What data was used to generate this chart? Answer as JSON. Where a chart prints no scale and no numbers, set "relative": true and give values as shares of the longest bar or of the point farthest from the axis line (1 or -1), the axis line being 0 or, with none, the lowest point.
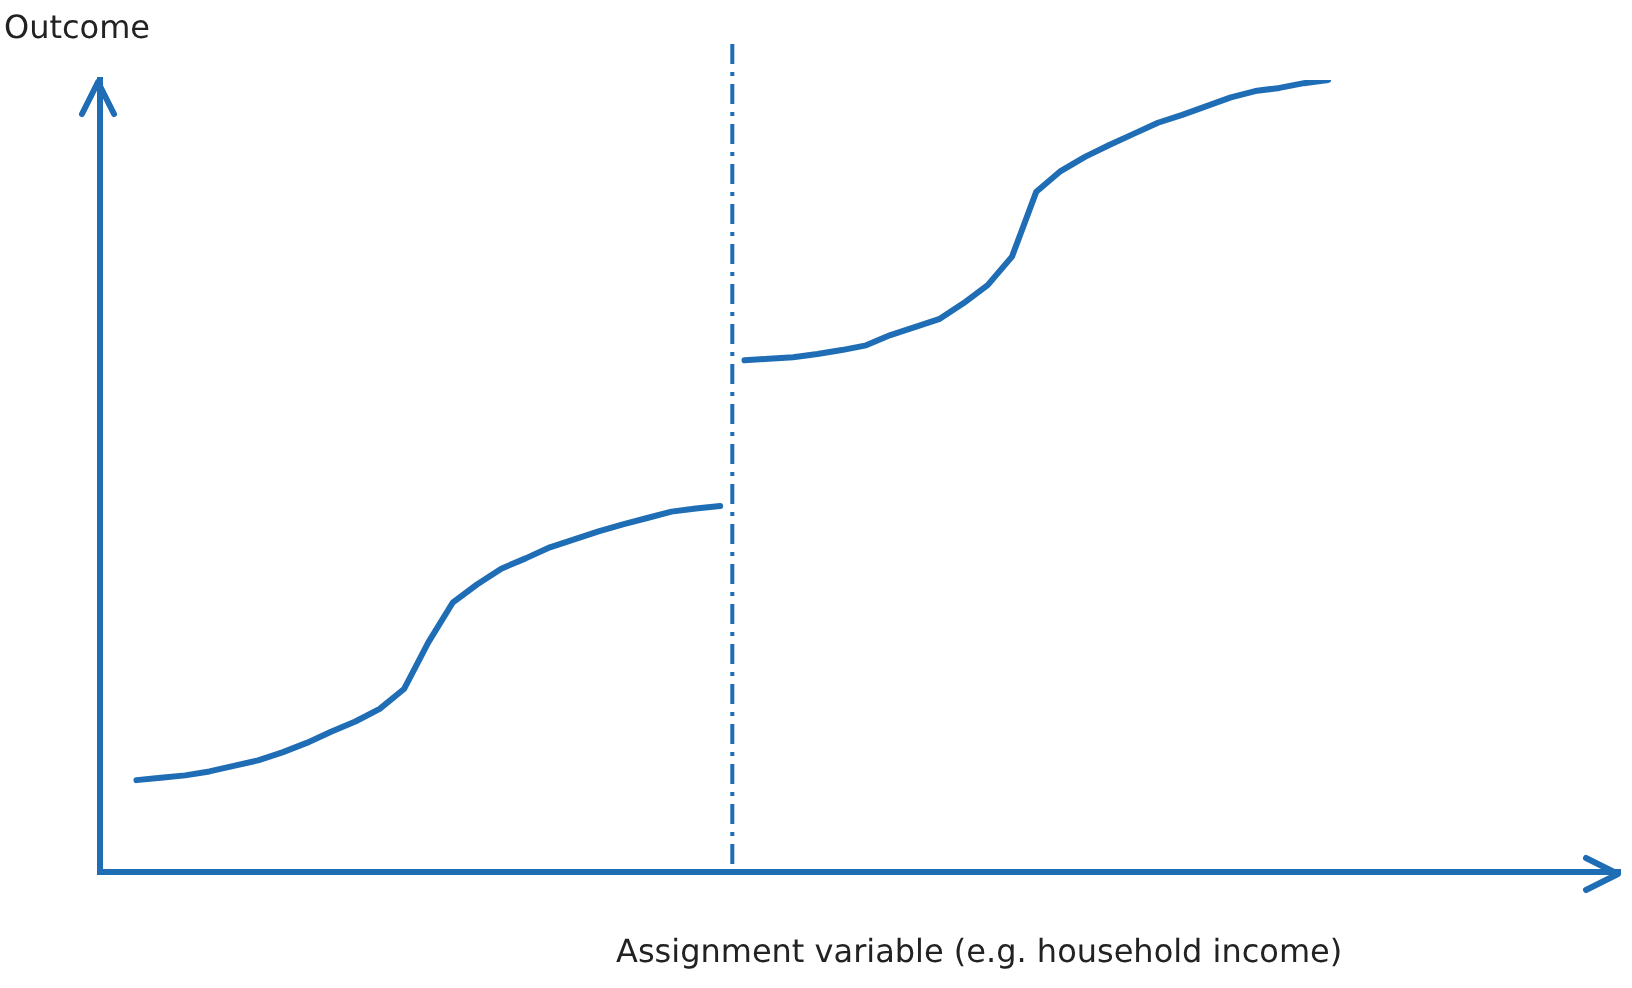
{
  "chart_data": {
    "type": "line",
    "ylabel": "Outcome",
    "xlabel": "Assignment variable (e.g. household income)",
    "relative": true,
    "marker": "none",
    "line_style": "solid",
    "categories": [
      null,
      null,
      null,
      null,
      null,
      null,
      null,
      null,
      null,
      null,
      null,
      null,
      null,
      null,
      null,
      null,
      null,
      null,
      null,
      null,
      null,
      null,
      null,
      null,
      null,
      null,
      null,
      null,
      null,
      null,
      null,
      null,
      null,
      null,
      null,
      null,
      null,
      null,
      null,
      null,
      null,
      null,
      null,
      null,
      null,
      null,
      null,
      null,
      null,
      null
    ],
    "series": [
      {
        "color": "#1f6db5",
        "values": [
          0.116,
          0.119,
          0.122,
          0.127,
          0.134,
          0.141,
          0.151,
          0.163,
          0.177,
          0.19,
          0.206,
          0.231,
          0.29,
          0.34,
          0.363,
          0.383,
          0.396,
          0.41,
          0.42,
          0.43,
          0.439,
          0.447,
          0.455,
          0.459,
          0.462,
          null,
          null,
          null,
          null,
          null,
          null,
          null,
          null,
          null,
          null,
          null,
          null,
          null,
          null,
          null,
          null,
          null,
          null,
          null,
          null,
          null,
          null,
          null,
          null,
          null
        ]
      },
      {
        "color": "#1f6db5",
        "values": [
          null,
          null,
          null,
          null,
          null,
          null,
          null,
          null,
          null,
          null,
          null,
          null,
          null,
          null,
          null,
          null,
          null,
          null,
          null,
          null,
          null,
          null,
          null,
          null,
          null,
          0.646,
          0.648,
          0.65,
          0.654,
          0.659,
          0.665,
          0.678,
          0.688,
          0.698,
          0.718,
          0.741,
          0.777,
          0.859,
          0.885,
          0.903,
          0.918,
          0.932,
          0.946,
          0.956,
          0.967,
          0.978,
          0.986,
          0.99,
          0.996,
          1
        ]
      }
    ],
    "ref_lines": [
      {
        "axis": "x",
        "value": null,
        "color": "#1f6db5",
        "line_style": "dashed"
      }
    ]
  }
}
